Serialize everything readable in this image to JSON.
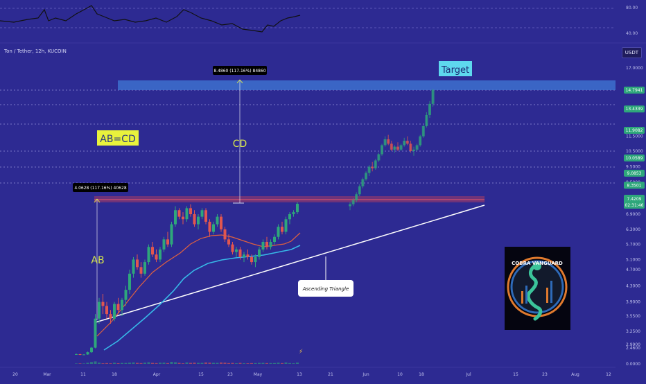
{
  "symbol": "Ton / Tether, 12h, KUCOIN",
  "currency": "USDT",
  "chart_data": {
    "type": "candlestick",
    "ylim": [
      0,
      17.5
    ],
    "price_axis": [
      "17.0000",
      "12.0000",
      "11.5000",
      "10.5000",
      "9.5000",
      "8.5000",
      "6.9000",
      "6.3000",
      "5.7000",
      "5.1000",
      "4.7000",
      "4.3000",
      "3.9000",
      "3.5500",
      "3.2500",
      "2.9900",
      "2.4600",
      "0.0000"
    ],
    "level_labels": [
      "14.7941",
      "13.4339",
      "11.9082",
      "10.0589",
      "9.0853",
      "8.3501"
    ],
    "current_price": {
      "value": "7.4209",
      "countdown": "02:31:46"
    },
    "date_labels": [
      "20",
      "Mar",
      "11",
      "18",
      "Apr",
      "15",
      "23",
      "May",
      "13",
      "21",
      "Jun",
      "10",
      "18",
      "Jul",
      "15",
      "23",
      "Aug",
      "12"
    ],
    "rsi": {
      "levels": [
        "80.00",
        "40.00"
      ]
    },
    "annotations": {
      "ab_measure": "4.0628 (117.16%) 40628",
      "cd_measure": "8.4860 (117.16%) 84860",
      "ab": "AB",
      "cd": "CD",
      "abcd": "AB=CD",
      "target": "Target",
      "triangle": "Ascending Triangle",
      "logo": "COBRA VANGUARD"
    },
    "candles": [
      [
        1.5,
        1.6,
        1.4,
        1.5
      ],
      [
        1.5,
        1.55,
        1.35,
        1.45
      ],
      [
        1.45,
        1.5,
        1.4,
        1.45
      ],
      [
        1.45,
        1.9,
        1.4,
        1.8
      ],
      [
        1.8,
        2.6,
        1.7,
        2.5
      ],
      [
        2.5,
        3.6,
        2.4,
        3.5
      ],
      [
        3.5,
        4.0,
        3.4,
        3.9
      ],
      [
        3.9,
        4.1,
        3.6,
        3.8
      ],
      [
        3.8,
        3.9,
        3.5,
        3.6
      ],
      [
        3.6,
        3.7,
        3.4,
        3.5
      ],
      [
        3.5,
        3.9,
        3.45,
        3.85
      ],
      [
        3.85,
        4.0,
        3.6,
        3.7
      ],
      [
        3.7,
        4.0,
        3.55,
        3.95
      ],
      [
        3.95,
        4.3,
        3.8,
        4.2
      ],
      [
        4.2,
        4.7,
        4.1,
        4.6
      ],
      [
        4.6,
        5.2,
        4.5,
        5.1
      ],
      [
        5.1,
        5.3,
        4.7,
        4.8
      ],
      [
        4.8,
        5.0,
        4.5,
        4.6
      ],
      [
        4.6,
        5.1,
        4.55,
        5.0
      ],
      [
        5.0,
        5.7,
        4.9,
        5.6
      ],
      [
        5.6,
        5.8,
        5.2,
        5.3
      ],
      [
        5.3,
        5.5,
        5.0,
        5.1
      ],
      [
        5.1,
        5.6,
        5.0,
        5.5
      ],
      [
        5.5,
        6.0,
        5.4,
        5.9
      ],
      [
        5.9,
        6.2,
        5.6,
        5.7
      ],
      [
        5.7,
        6.6,
        5.6,
        6.5
      ],
      [
        6.5,
        7.3,
        6.4,
        7.1
      ],
      [
        7.1,
        7.2,
        6.7,
        6.8
      ],
      [
        6.8,
        7.0,
        6.5,
        6.7
      ],
      [
        6.7,
        7.3,
        6.6,
        7.2
      ],
      [
        7.2,
        7.4,
        6.8,
        6.9
      ],
      [
        6.9,
        7.1,
        6.4,
        6.5
      ],
      [
        6.5,
        6.9,
        6.3,
        6.8
      ],
      [
        6.8,
        7.2,
        6.7,
        7.1
      ],
      [
        7.1,
        7.2,
        6.5,
        6.6
      ],
      [
        6.6,
        6.7,
        6.0,
        6.2
      ],
      [
        6.2,
        6.6,
        6.1,
        6.5
      ],
      [
        6.5,
        6.9,
        6.4,
        6.8
      ],
      [
        6.8,
        6.9,
        6.2,
        6.3
      ],
      [
        6.3,
        6.4,
        5.8,
        5.9
      ],
      [
        5.9,
        6.1,
        5.6,
        5.7
      ],
      [
        5.7,
        5.8,
        5.3,
        5.4
      ],
      [
        5.4,
        5.6,
        5.2,
        5.5
      ],
      [
        5.5,
        5.6,
        5.1,
        5.2
      ],
      [
        5.2,
        5.4,
        5.0,
        5.3
      ],
      [
        5.3,
        5.5,
        5.1,
        5.2
      ],
      [
        5.2,
        5.3,
        4.9,
        5.0
      ],
      [
        5.0,
        5.3,
        4.8,
        5.2
      ],
      [
        5.2,
        5.6,
        5.1,
        5.5
      ],
      [
        5.5,
        5.9,
        5.4,
        5.8
      ],
      [
        5.8,
        6.0,
        5.5,
        5.6
      ],
      [
        5.6,
        5.9,
        5.5,
        5.8
      ],
      [
        5.8,
        6.1,
        5.7,
        6.0
      ],
      [
        6.0,
        6.5,
        5.9,
        6.4
      ],
      [
        6.4,
        6.6,
        6.1,
        6.2
      ],
      [
        6.2,
        6.8,
        6.1,
        6.7
      ],
      [
        6.7,
        7.0,
        6.5,
        6.9
      ],
      [
        6.9,
        7.1,
        6.8,
        7.0
      ],
      [
        7.0,
        7.5,
        6.9,
        7.42
      ]
    ],
    "projection": [
      [
        7.3,
        7.5,
        7.1,
        7.4
      ],
      [
        7.4,
        7.7,
        7.3,
        7.6
      ],
      [
        7.6,
        8.0,
        7.5,
        7.9
      ],
      [
        7.9,
        8.4,
        7.8,
        8.3
      ],
      [
        8.3,
        8.8,
        8.2,
        8.7
      ],
      [
        8.7,
        9.2,
        8.6,
        9.1
      ],
      [
        9.1,
        9.6,
        8.9,
        9.5
      ],
      [
        9.5,
        9.8,
        9.2,
        9.4
      ],
      [
        9.4,
        10.0,
        9.3,
        9.9
      ],
      [
        9.9,
        10.4,
        9.8,
        10.3
      ],
      [
        10.3,
        11.0,
        10.2,
        10.9
      ],
      [
        10.9,
        11.5,
        10.8,
        11.3
      ],
      [
        11.3,
        11.6,
        10.9,
        11.0
      ],
      [
        11.0,
        11.2,
        10.5,
        10.6
      ],
      [
        10.6,
        10.9,
        10.4,
        10.8
      ],
      [
        10.8,
        11.1,
        10.5,
        10.6
      ],
      [
        10.6,
        11.0,
        10.5,
        10.9
      ],
      [
        10.9,
        11.4,
        10.8,
        11.2
      ],
      [
        11.2,
        11.5,
        10.9,
        11.0
      ],
      [
        11.0,
        11.2,
        10.4,
        10.5
      ],
      [
        10.5,
        10.8,
        10.2,
        10.6
      ],
      [
        10.6,
        11.0,
        10.5,
        10.9
      ],
      [
        10.9,
        11.6,
        10.8,
        11.5
      ],
      [
        11.5,
        12.3,
        11.4,
        12.2
      ],
      [
        12.2,
        13.2,
        12.1,
        13.0
      ],
      [
        13.0,
        14.0,
        12.8,
        13.8
      ],
      [
        13.8,
        14.9,
        13.6,
        14.8
      ]
    ]
  }
}
